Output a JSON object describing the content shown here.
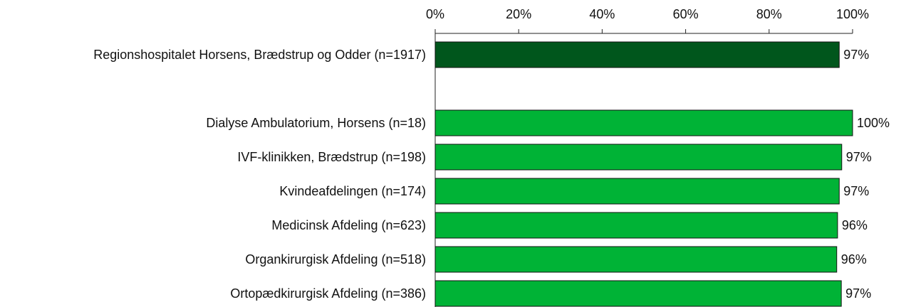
{
  "chart_data": {
    "type": "bar",
    "orientation": "horizontal",
    "categories": [
      "Regionshospitalet Horsens, Brædstrup og Odder (n=1917)",
      null,
      "Dialyse Ambulatorium, Horsens (n=18)",
      "IVF-klinikken, Brædstrup (n=198)",
      "Kvindeafdelingen (n=174)",
      "Medicinsk Afdeling (n=623)",
      "Organkirurgisk Afdeling (n=518)",
      "Ortopædkirurgisk Afdeling (n=386)"
    ],
    "values": [
      96.8,
      null,
      100,
      97.4,
      96.8,
      96.4,
      96.2,
      97.3
    ],
    "value_labels": [
      "97%",
      null,
      "100%",
      "97%",
      "97%",
      "96%",
      "96%",
      "97%"
    ],
    "colors": [
      "#00561c",
      null,
      "#00b336",
      "#00b336",
      "#00b336",
      "#00b336",
      "#00b336",
      "#00b336"
    ],
    "xlim": [
      0,
      100
    ],
    "xticks": [
      {
        "value": 0,
        "label": "0%"
      },
      {
        "value": 20,
        "label": "20%"
      },
      {
        "value": 40,
        "label": "40%"
      },
      {
        "value": 60,
        "label": "60%"
      },
      {
        "value": 80,
        "label": "80%"
      },
      {
        "value": 100,
        "label": "100%"
      }
    ]
  }
}
